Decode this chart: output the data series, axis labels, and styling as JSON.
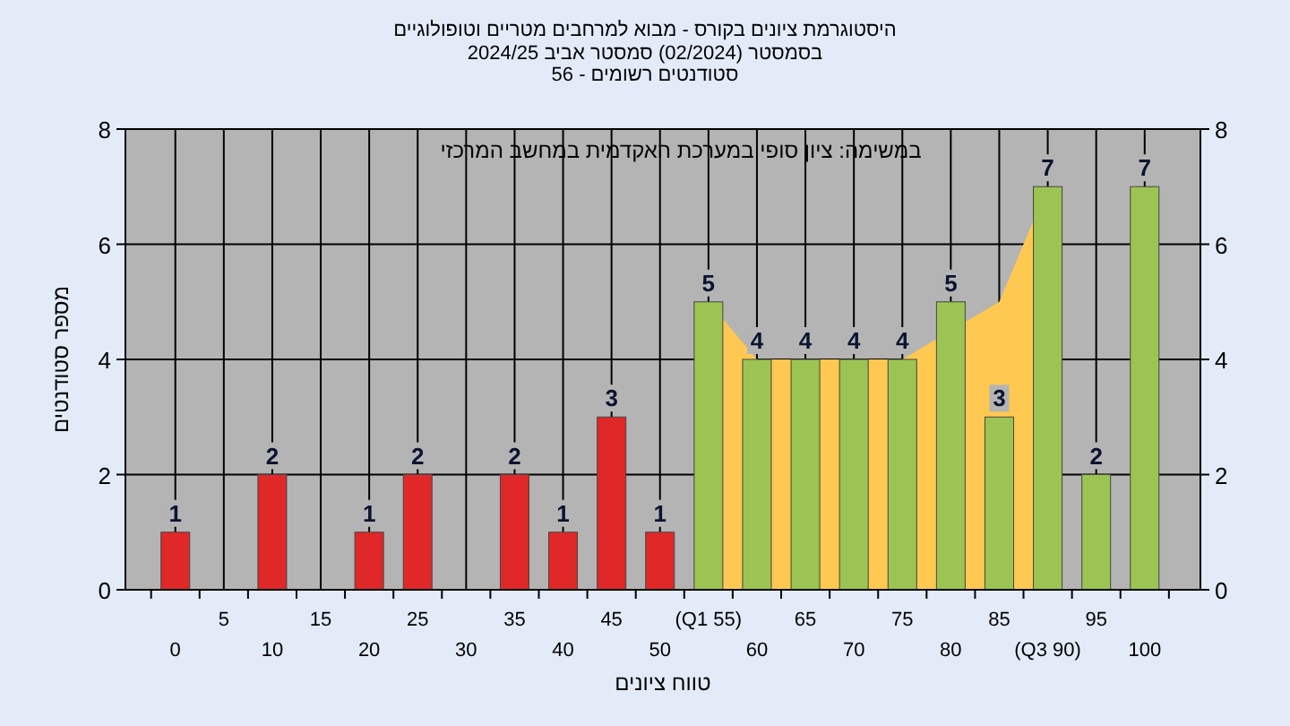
{
  "chart_data": {
    "type": "bar",
    "title": "היסטוגרמת ציונים בקורס - מבוא למרחבים מטריים וטופולוגיים",
    "subtitle": "בסמסטר  (02/2024)  סמסטר אביב 2024/25\nסטודנטים רשומים - 56",
    "xlabel": "טווח ציונים",
    "ylabel": "מספר סטודנטים",
    "annotations": [
      "במשימה: ציון סופי במערכת האקדמית במחשב המרכזי"
    ],
    "categories": [
      "0",
      "5",
      "10",
      "15",
      "20",
      "25",
      "30",
      "35",
      "40",
      "45",
      "50",
      "(Q1 55)",
      "60",
      "65",
      "70",
      "75",
      "80",
      "85",
      "(Q3 90)",
      "95",
      "100"
    ],
    "series": [
      {
        "type": "area",
        "color": "#ffc850",
        "values": [
          null,
          null,
          null,
          null,
          null,
          null,
          null,
          null,
          null,
          null,
          null,
          5,
          4,
          4,
          4,
          4,
          null,
          5,
          7,
          null,
          null
        ]
      },
      {
        "colors": [
          "#e02828",
          "#e02828",
          "#e02828",
          "#e02828",
          "#e02828",
          "#e02828",
          "#e02828",
          "#e02828",
          "#e02828",
          "#e02828",
          "#e02828",
          "#9cc452",
          "#9cc452",
          "#9cc452",
          "#9cc452",
          "#9cc452",
          "#9cc452",
          "#9cc452",
          "#9cc452",
          "#9cc452",
          "#9cc452"
        ],
        "values": [
          1,
          0,
          2,
          0,
          1,
          2,
          0,
          2,
          1,
          3,
          1,
          5,
          4,
          4,
          4,
          4,
          5,
          3,
          7,
          2,
          7
        ],
        "value_labels": [
          "1",
          null,
          "2",
          null,
          "1",
          "2",
          null,
          "2",
          "1",
          "3",
          "1",
          "5",
          "4",
          "4",
          "4",
          "4",
          "5",
          "3",
          "7",
          "2",
          "7"
        ]
      }
    ],
    "ylim": [
      0,
      8
    ],
    "yticks": [
      0,
      2,
      4,
      6,
      8
    ],
    "y2lim": [
      0,
      8
    ],
    "y2ticks": [
      0,
      2,
      4,
      6,
      8
    ],
    "grid": true
  }
}
